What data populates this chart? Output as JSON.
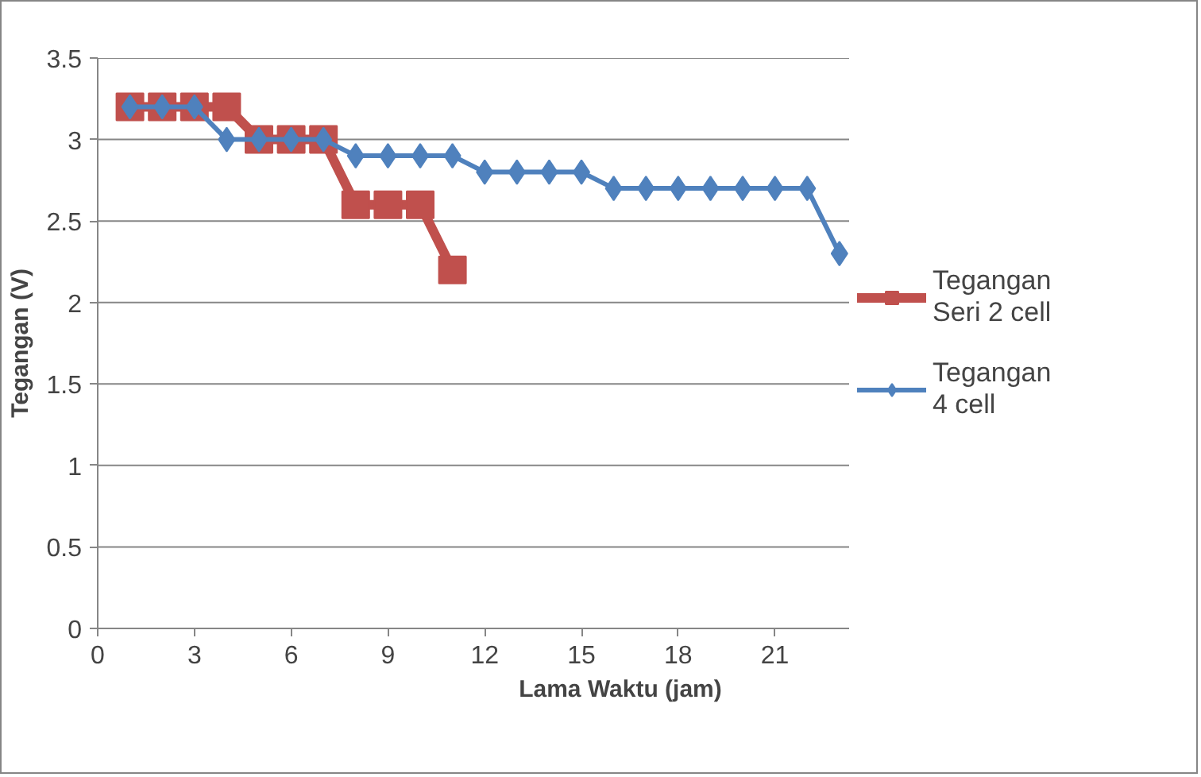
{
  "chart_data": {
    "type": "line",
    "xlabel": "Lama Waktu (jam)",
    "ylabel": "Tegangan (V)",
    "xlim": [
      0,
      23.3
    ],
    "xticks": [
      0,
      3,
      6,
      9,
      12,
      15,
      18,
      21
    ],
    "ylim": [
      0,
      3.5
    ],
    "yticks": [
      0,
      0.5,
      1,
      1.5,
      2,
      2.5,
      3,
      3.5
    ],
    "grid": "y",
    "legend": "right",
    "series": [
      {
        "name": "Tegangan Seri 2 cell",
        "color": "#c0504d",
        "marker": "square",
        "x": [
          1,
          2,
          3,
          4,
          5,
          6,
          7,
          8,
          9,
          10,
          11
        ],
        "values": [
          3.2,
          3.2,
          3.2,
          3.2,
          3.0,
          3.0,
          3.0,
          2.6,
          2.6,
          2.6,
          2.2
        ]
      },
      {
        "name": "Tegangan 4 cell",
        "color": "#4f81bd",
        "marker": "diamond",
        "x": [
          1,
          2,
          3,
          4,
          5,
          6,
          7,
          8,
          9,
          10,
          11,
          12,
          13,
          14,
          15,
          16,
          17,
          18,
          19,
          20,
          21,
          22,
          23
        ],
        "values": [
          3.2,
          3.2,
          3.2,
          3.0,
          3.0,
          3.0,
          3.0,
          2.9,
          2.9,
          2.9,
          2.9,
          2.8,
          2.8,
          2.8,
          2.8,
          2.7,
          2.7,
          2.7,
          2.7,
          2.7,
          2.7,
          2.7,
          2.3
        ]
      }
    ]
  }
}
